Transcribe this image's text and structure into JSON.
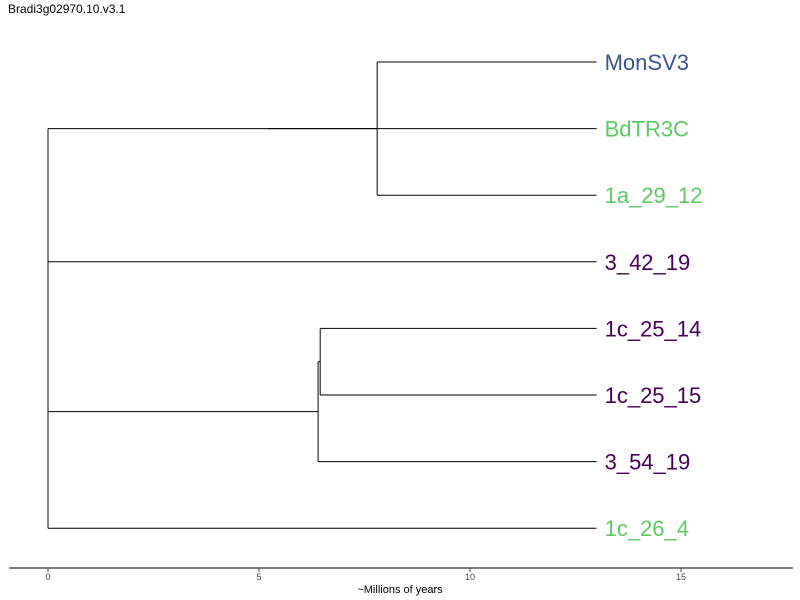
{
  "title": "Bradi3g02970.10.v3.1",
  "axis": {
    "label": "~Millions of years",
    "min": 0,
    "max": 17.5,
    "ticks": [
      0,
      5,
      10,
      15
    ]
  },
  "colors": {
    "purple": "#440154",
    "blue": "#3b528b",
    "green": "#5ec962",
    "line": "#000000"
  },
  "chart_data": {
    "type": "dendrogram",
    "leaves": [
      {
        "name": "MonSV3",
        "color": "#3b528b"
      },
      {
        "name": "BdTR3C",
        "color": "#5ec962"
      },
      {
        "name": "1a_29_12",
        "color": "#5ec962"
      },
      {
        "name": "3_42_19",
        "color": "#440154"
      },
      {
        "name": "1c_25_14",
        "color": "#440154"
      },
      {
        "name": "1c_25_15",
        "color": "#440154"
      },
      {
        "name": "3_54_19",
        "color": "#440154"
      },
      {
        "name": "1c_26_4",
        "color": "#5ec962"
      }
    ],
    "nodes": [
      {
        "id": "root",
        "x": 0,
        "children": [
          "A",
          "B"
        ]
      },
      {
        "id": "A",
        "x": 0,
        "children": [
          "C",
          "L3"
        ]
      },
      {
        "id": "C",
        "x": 5.2,
        "children": [
          "D",
          "L1"
        ]
      },
      {
        "id": "D",
        "x": 7.8,
        "children": [
          "L0",
          "L2"
        ]
      },
      {
        "id": "B",
        "x": 0,
        "children": [
          "E",
          "L7"
        ]
      },
      {
        "id": "E",
        "x": 6.4,
        "children": [
          "F",
          "L6"
        ]
      },
      {
        "id": "F",
        "x": 6.45,
        "children": [
          "L4",
          "L5"
        ]
      }
    ],
    "leaf_x": 13
  }
}
